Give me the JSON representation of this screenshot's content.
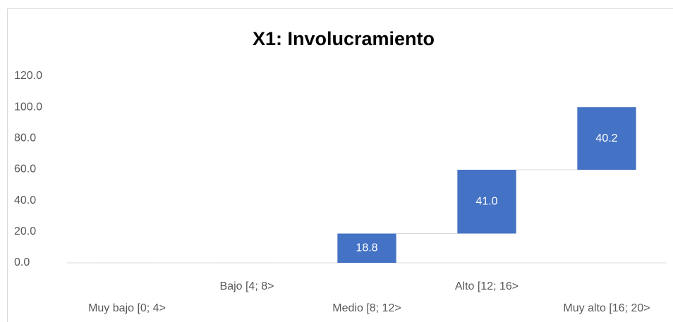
{
  "chart_data": {
    "type": "waterfall",
    "title": "X1: Involucramiento",
    "categories": [
      "Muy bajo [0; 4>",
      "Bajo [4; 8>",
      "Medio [8; 12>",
      "Alto [12; 16>",
      "Muy alto [16; 20>"
    ],
    "values": [
      0,
      0,
      18.8,
      41.0,
      40.2
    ],
    "value_labels": [
      null,
      null,
      "18.8",
      "41.0",
      "40.2"
    ],
    "color": "#4472c4",
    "ylim": [
      0,
      120
    ],
    "yticks": [
      {
        "value": 0,
        "label": "0.0"
      },
      {
        "value": 20,
        "label": "20.0"
      },
      {
        "value": 40,
        "label": "40.0"
      },
      {
        "value": 60,
        "label": "60.0"
      },
      {
        "value": 80,
        "label": "80.0"
      },
      {
        "value": 100,
        "label": "100.0"
      },
      {
        "value": 120,
        "label": "120.0"
      }
    ],
    "grid": false
  }
}
